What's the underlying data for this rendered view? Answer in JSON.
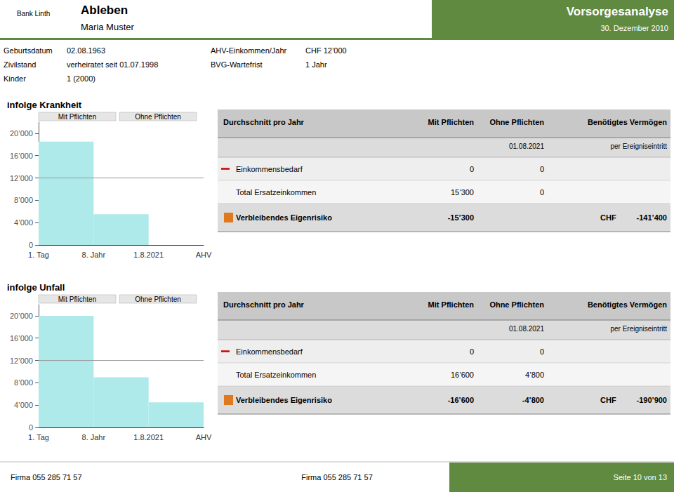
{
  "header": {
    "brand": "Bank Linth",
    "title": "Ableben",
    "subtitle": "Maria Muster",
    "title_right": "Vorsorgesanalyse",
    "subtitle_right": "30. Dezember 2010",
    "color": "#5f8a3f"
  },
  "info": {
    "labels": [
      "Geburtsdatum",
      "Zivilstand",
      "Kinder"
    ],
    "values": [
      "02.08.1963",
      "verheiratet seit 01.07.1998",
      "1 (2000)"
    ],
    "labels2": [
      "AHV-Einkommen/Jahr",
      "BVG-Wartefrist"
    ],
    "values2": [
      "CHF 12’000",
      "1 Jahr"
    ]
  },
  "chart_data": [
    {
      "type": "bar",
      "title": "infolge Krankheit",
      "annotations": [
        "Mit Pflichten",
        "Ohne Pflichten"
      ],
      "bins": [
        "1. Tag",
        "8. Jahr",
        "1.8.2021",
        "AHV"
      ],
      "values": [
        18500,
        5500,
        0
      ],
      "color": "#aeeaea",
      "reference_line": {
        "value": 12000,
        "color": "#999999"
      },
      "ylim": [
        0,
        22000
      ],
      "yticks": [
        0,
        {
          "value": 4000,
          "label": "4’000"
        },
        {
          "value": 8000,
          "label": "8’000"
        },
        {
          "value": 12000,
          "label": "12’000"
        },
        {
          "value": 16000,
          "label": "16’000"
        },
        {
          "value": 20000,
          "label": "20’000"
        }
      ],
      "grid": false,
      "table": {
        "header": [
          "Durchschnitt pro Jahr",
          "Mit Pflichten",
          "Ohne Pflichten",
          null,
          "Benötigtes Vermögen"
        ],
        "subheader": [
          null,
          null,
          "01.08.2021",
          null,
          "per Ereigniseintritt"
        ],
        "rows": [
          [
            "Einkommensbedarf",
            "0",
            "0",
            null,
            null
          ],
          [
            "Total Ersatzeinkommen",
            "15’300",
            "0",
            null,
            null
          ],
          [
            "Verbleibendes Eigenrisiko",
            "-15’300",
            null,
            "CHF",
            "-141’400"
          ]
        ],
        "row_markers": [
          {
            "marker": "dash",
            "color": "#cc0000"
          },
          null,
          {
            "marker": "square",
            "color": "#e07820"
          }
        ]
      }
    },
    {
      "type": "bar",
      "title": "infolge Unfall",
      "annotations": [
        "Mit Pflichten",
        "Ohne Pflichten"
      ],
      "bins": [
        "1. Tag",
        "8. Jahr",
        "1.8.2021",
        "AHV"
      ],
      "values": [
        20000,
        9000,
        4500
      ],
      "color": "#aeeaea",
      "reference_line": {
        "value": 12000,
        "color": "#999999"
      },
      "ylim": [
        0,
        22000
      ],
      "yticks": [
        0,
        {
          "value": 4000,
          "label": "4’000"
        },
        {
          "value": 8000,
          "label": "8’000"
        },
        {
          "value": 12000,
          "label": "12’000"
        },
        {
          "value": 16000,
          "label": "16’000"
        },
        {
          "value": 20000,
          "label": "20’000"
        }
      ],
      "grid": false,
      "table": {
        "header": [
          "Durchschnitt pro Jahr",
          "Mit Pflichten",
          "Ohne Pflichten",
          null,
          "Benötigtes Vermögen"
        ],
        "subheader": [
          null,
          null,
          "01.08.2021",
          null,
          "per Ereigniseintritt"
        ],
        "rows": [
          [
            "Einkommensbedarf",
            "0",
            "0",
            null,
            null
          ],
          [
            "Total Ersatzeinkommen",
            "16’600",
            "4’800",
            null,
            null
          ],
          [
            "Verbleibendes Eigenrisiko",
            "-16’600",
            "-4’800",
            "CHF",
            "-190’900"
          ]
        ],
        "row_markers": [
          {
            "marker": "dash",
            "color": "#cc0000"
          },
          null,
          {
            "marker": "square",
            "color": "#e07820"
          }
        ]
      }
    }
  ],
  "footer": {
    "text": "Firma 055 285 71 57",
    "page": "Seite 10 von 13",
    "color": "#5f8a3f"
  }
}
